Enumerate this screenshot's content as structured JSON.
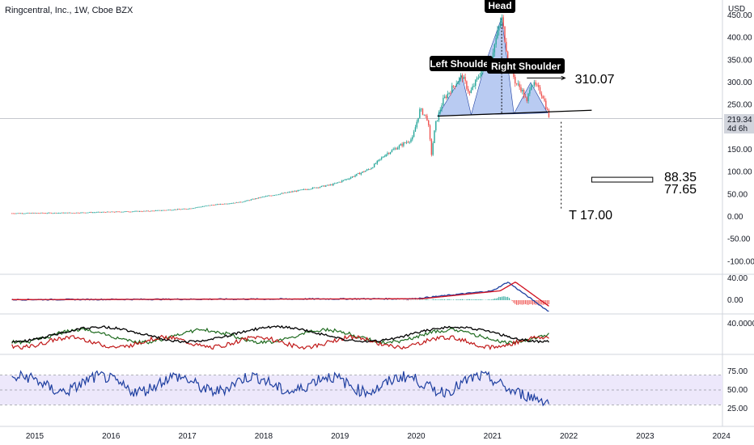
{
  "header": {
    "title": "Ringcentral, Inc., 1W, Cboe BZX",
    "currency": "USD"
  },
  "colors": {
    "up": "#26a69a",
    "down": "#ef5350",
    "pattern_fill": "#7fa0e8",
    "macd": "#1e3fa0",
    "signal": "#d01020",
    "adx": "#000000",
    "di_plus": "#1e6a1e",
    "di_minus": "#c01818",
    "rsi": "#1e3fa0",
    "rsi_band": "#ede8fb"
  },
  "price_badge": {
    "price": "219.34",
    "countdown": "4d 6h"
  },
  "chart_data": {
    "type": "candlestick",
    "x_ticks": [
      "2015",
      "2016",
      "2017",
      "2018",
      "2019",
      "2020",
      "2021",
      "2022",
      "2023",
      "2024"
    ],
    "x_tick_years": [
      2015,
      2016,
      2017,
      2018,
      2019,
      2020,
      2021,
      2022,
      2023,
      2024
    ],
    "price_axis": {
      "ticks": [
        "450.00",
        "400.00",
        "350.00",
        "300.00",
        "250.00",
        "200.00",
        "150.00",
        "100.00",
        "50.00",
        "0.00",
        "-50.00",
        "-100.00"
      ],
      "values": [
        450,
        400,
        350,
        300,
        250,
        200,
        150,
        100,
        50,
        0,
        -50,
        -100
      ],
      "range": [
        -115,
        470
      ]
    },
    "price_path": [
      [
        2014.7,
        8
      ],
      [
        2015.5,
        9
      ],
      [
        2016.0,
        11
      ],
      [
        2016.5,
        13
      ],
      [
        2017.0,
        18
      ],
      [
        2017.3,
        26
      ],
      [
        2017.7,
        33
      ],
      [
        2018.0,
        45
      ],
      [
        2018.5,
        60
      ],
      [
        2018.9,
        72
      ],
      [
        2019.1,
        85
      ],
      [
        2019.4,
        108
      ],
      [
        2019.6,
        140
      ],
      [
        2019.8,
        160
      ],
      [
        2019.95,
        175
      ],
      [
        2020.05,
        240
      ],
      [
        2020.15,
        218
      ],
      [
        2020.2,
        140
      ],
      [
        2020.25,
        205
      ],
      [
        2020.35,
        260
      ],
      [
        2020.5,
        295
      ],
      [
        2020.6,
        315
      ],
      [
        2020.7,
        275
      ],
      [
        2020.8,
        308
      ],
      [
        2020.9,
        340
      ],
      [
        2020.95,
        335
      ],
      [
        2021.05,
        400
      ],
      [
        2021.12,
        445
      ],
      [
        2021.2,
        355
      ],
      [
        2021.3,
        300
      ],
      [
        2021.38,
        285
      ],
      [
        2021.45,
        255
      ],
      [
        2021.5,
        300
      ],
      [
        2021.58,
        290
      ],
      [
        2021.66,
        270
      ],
      [
        2021.72,
        235
      ],
      [
        2021.75,
        219
      ]
    ],
    "patterns": {
      "left_shoulder_label": "Left Shoulder",
      "head_label": "Head",
      "right_shoulder_label": "Right Shoulder",
      "neckline": [
        [
          2020.28,
          225
        ],
        [
          2022.3,
          238
        ]
      ],
      "target_label": "T  17.00",
      "level_label": "310.07",
      "range_labels": [
        "88.35",
        "77.65"
      ],
      "range_box": [
        2022.3,
        2023.1,
        77.65,
        88.35
      ]
    },
    "macd": {
      "axis_ticks": [
        "40.00",
        "0.00"
      ],
      "axis_values": [
        40,
        0
      ]
    },
    "dmi": {
      "axis_ticks": [
        "40.0000"
      ],
      "axis_values": [
        40
      ]
    },
    "rsi": {
      "axis_ticks": [
        "75.00",
        "50.00",
        "25.00"
      ],
      "axis_values": [
        75,
        50,
        25
      ],
      "band": [
        30,
        70
      ]
    }
  }
}
